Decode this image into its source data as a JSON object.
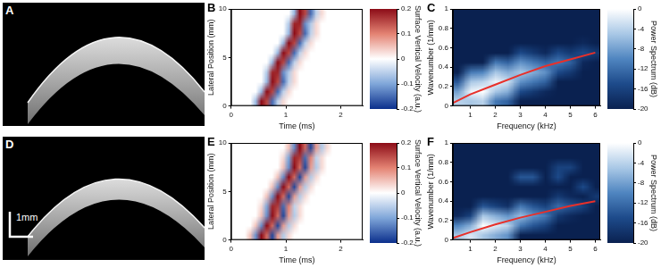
{
  "chart_data": [
    {
      "label": "A",
      "type": "image"
    },
    {
      "label": "B",
      "type": "heatmap",
      "grid": false,
      "x_label": "Time (ms)",
      "y_label": "Lateral Position (mm)",
      "xlim": [
        0,
        2.4
      ],
      "xticks": [
        0,
        1,
        2
      ],
      "ylim": [
        0,
        10
      ],
      "yticks": [
        0,
        5,
        10
      ],
      "x": [
        0.05,
        0.15,
        0.25,
        0.35,
        0.45,
        0.55,
        0.65,
        0.75,
        0.85,
        0.95,
        1.05,
        1.15,
        1.25,
        1.35,
        1.45,
        1.55,
        1.65,
        1.75,
        1.85,
        1.95,
        2.05,
        2.15,
        2.25,
        2.35
      ],
      "y": [
        0.5,
        1.5,
        2.5,
        3.5,
        4.5,
        5.5,
        6.5,
        7.5,
        8.5,
        9.5
      ],
      "cells": [
        [
          0,
          0,
          0,
          0,
          -0.08,
          0.2,
          0.15,
          -0.15,
          -0.05,
          0.03,
          0,
          0,
          0,
          0,
          0,
          0,
          0,
          0,
          0,
          0,
          0,
          0,
          0,
          0
        ],
        [
          0,
          0,
          0,
          0,
          0,
          -0.08,
          0.2,
          0.15,
          -0.15,
          -0.05,
          0.03,
          0,
          0,
          0,
          0,
          0,
          0,
          0,
          0,
          0,
          0,
          0,
          0,
          0
        ],
        [
          0,
          0,
          0,
          0,
          0,
          0,
          -0.08,
          0.2,
          0.15,
          -0.15,
          -0.05,
          0.03,
          0,
          0,
          0,
          0,
          0,
          0,
          0,
          0,
          0,
          0,
          0,
          0
        ],
        [
          0,
          0,
          0,
          0,
          0,
          0,
          -0.06,
          0.18,
          0.18,
          -0.12,
          -0.06,
          0.03,
          0,
          0,
          0,
          0,
          0,
          0,
          0,
          0,
          0,
          0,
          0,
          0
        ],
        [
          0,
          0,
          0,
          0,
          0,
          0,
          0,
          -0.08,
          0.2,
          0.15,
          -0.15,
          -0.05,
          0.03,
          0,
          0,
          0,
          0,
          0,
          0,
          0,
          0,
          0,
          0,
          0
        ],
        [
          0,
          0,
          0,
          0,
          0,
          0,
          0,
          0,
          -0.08,
          0.2,
          0.15,
          -0.15,
          -0.05,
          0.03,
          0,
          0,
          0,
          0,
          0,
          0,
          0,
          0,
          0,
          0
        ],
        [
          0,
          0,
          0,
          0,
          0,
          0,
          0,
          0,
          0,
          -0.08,
          0.2,
          0.15,
          -0.15,
          -0.05,
          0.03,
          0,
          0,
          0,
          0,
          0,
          0,
          0,
          0,
          0
        ],
        [
          0,
          0,
          0,
          0,
          0,
          0,
          0,
          0,
          0,
          0,
          -0.08,
          0.2,
          0.15,
          -0.15,
          -0.05,
          0.03,
          0,
          0,
          0,
          0,
          0,
          0,
          0,
          0
        ],
        [
          0,
          0,
          0,
          0,
          0,
          0,
          0,
          0,
          0,
          0,
          -0.06,
          0.18,
          0.18,
          -0.12,
          -0.06,
          0.03,
          0,
          0,
          0,
          0,
          0,
          0,
          0,
          0
        ],
        [
          0,
          0,
          0,
          0,
          0,
          0,
          0,
          0,
          0,
          0,
          0,
          -0.08,
          0.2,
          0.15,
          -0.15,
          -0.05,
          0.03,
          0,
          0,
          0,
          0,
          0,
          0,
          0
        ]
      ],
      "colorbar": {
        "label": "Surface Vertical Velocity (a.u.)",
        "range": [
          -0.2,
          0.2
        ],
        "ticks": [
          -0.2,
          -0.1,
          0,
          0.1,
          0.2
        ],
        "colors": [
          "#0b2f8c",
          "#7fa6d9",
          "#ffffff",
          "#e48373",
          "#8c0c17"
        ]
      }
    },
    {
      "label": "C",
      "type": "heatmap",
      "grid": false,
      "x_label": "Frequency (kHz)",
      "y_label": "Wavenumber (1/mm)",
      "xlim": [
        0.3,
        6.2
      ],
      "xticks": [
        1,
        2,
        3,
        4,
        5,
        6
      ],
      "ylim": [
        0,
        1
      ],
      "yticks": [
        0,
        0.2,
        0.4,
        0.6,
        0.8,
        1
      ],
      "x": [
        0.5,
        1,
        1.5,
        2,
        2.5,
        3,
        3.5,
        4,
        4.5,
        5,
        5.5,
        6
      ],
      "y": [
        0.05,
        0.15,
        0.25,
        0.35,
        0.45,
        0.55,
        0.65,
        0.75,
        0.85,
        0.95
      ],
      "cells": [
        [
          -4,
          -5,
          -4,
          -11,
          -13,
          -20,
          -20,
          -20,
          -20,
          -20,
          -20,
          -20
        ],
        [
          -8,
          -1,
          0,
          -5,
          -7,
          -15,
          -17,
          -19,
          -20,
          -20,
          -20,
          -20
        ],
        [
          -14,
          -5,
          -4,
          -1,
          -3,
          -9,
          -11,
          -13,
          -20,
          -20,
          -20,
          -20
        ],
        [
          -20,
          -11,
          -10,
          -5,
          -7,
          -5,
          -7,
          -9,
          -15,
          -17,
          -20,
          -20
        ],
        [
          -20,
          -20,
          -20,
          -11,
          -13,
          -9,
          -11,
          -13,
          -11,
          -13,
          -19,
          -20
        ],
        [
          -20,
          -20,
          -20,
          -20,
          -20,
          -15,
          -17,
          -19,
          -15,
          -17,
          -15,
          -17
        ],
        [
          -20,
          -20,
          -20,
          -20,
          -20,
          -20,
          -20,
          -20,
          -20,
          -20,
          -19,
          -20
        ],
        [
          -20,
          -20,
          -20,
          -20,
          -20,
          -20,
          -20,
          -20,
          -20,
          -20,
          -20,
          -20
        ],
        [
          -20,
          -20,
          -20,
          -20,
          -20,
          -20,
          -20,
          -20,
          -20,
          -20,
          -20,
          -20
        ],
        [
          -20,
          -20,
          -20,
          -20,
          -20,
          -20,
          -20,
          -20,
          -20,
          -20,
          -20,
          -20
        ]
      ],
      "line": {
        "color": "#e8302a",
        "x": [
          0.3,
          1,
          2,
          3,
          4,
          5,
          6
        ],
        "values": [
          0.03,
          0.12,
          0.22,
          0.32,
          0.41,
          0.48,
          0.55
        ]
      },
      "colorbar": {
        "label": "Power Spectrum (dB)",
        "range": [
          -20,
          0
        ],
        "ticks": [
          0,
          -4,
          -8,
          -12,
          -16,
          -20
        ],
        "colors": [
          "#0a2150",
          "#1d4a8a",
          "#4f85c0",
          "#a9c8e6",
          "#ffffff"
        ]
      }
    },
    {
      "label": "D",
      "type": "image",
      "scale_bar": "1mm"
    },
    {
      "label": "E",
      "type": "heatmap",
      "grid": false,
      "x_label": "Time (ms)",
      "y_label": "Lateral Position (mm)",
      "xlim": [
        0,
        2.4
      ],
      "xticks": [
        0,
        1,
        2
      ],
      "ylim": [
        0,
        10
      ],
      "yticks": [
        0,
        5,
        10
      ],
      "x": [
        0.05,
        0.15,
        0.25,
        0.35,
        0.45,
        0.55,
        0.65,
        0.75,
        0.85,
        0.95,
        1.05,
        1.15,
        1.25,
        1.35,
        1.45,
        1.55,
        1.65,
        1.75,
        1.85,
        1.95,
        2.05,
        2.15,
        2.25,
        2.35
      ],
      "y": [
        0.5,
        1.5,
        2.5,
        3.5,
        4.5,
        5.5,
        6.5,
        7.5,
        8.5,
        9.5
      ],
      "cells": [
        [
          0,
          0,
          0,
          0.05,
          -0.12,
          0.2,
          0.12,
          -0.18,
          0.08,
          -0.06,
          0.03,
          0,
          0,
          0,
          0,
          0,
          0,
          0,
          0,
          0,
          0,
          0,
          0,
          0
        ],
        [
          0,
          0,
          0,
          0,
          0.05,
          -0.12,
          0.2,
          0.12,
          -0.18,
          0.08,
          -0.06,
          0.03,
          0,
          0,
          0,
          0,
          0,
          0,
          0,
          0,
          0,
          0,
          0,
          0
        ],
        [
          0,
          0,
          0,
          0,
          0,
          0.05,
          -0.12,
          0.2,
          0.12,
          -0.18,
          0.08,
          -0.06,
          0.03,
          0,
          0,
          0,
          0,
          0,
          0,
          0,
          0,
          0,
          0,
          0
        ],
        [
          0,
          0,
          0,
          0,
          0,
          0.03,
          -0.1,
          0.18,
          0.16,
          -0.15,
          0.1,
          -0.05,
          0.03,
          0,
          0,
          0,
          0,
          0,
          0,
          0,
          0,
          0,
          0,
          0
        ],
        [
          0,
          0,
          0,
          0,
          0,
          0,
          0.05,
          -0.12,
          0.2,
          0.12,
          -0.18,
          0.08,
          -0.06,
          0.03,
          0,
          0,
          0,
          0,
          0,
          0,
          0,
          0,
          0,
          0
        ],
        [
          0,
          0,
          0,
          0,
          0,
          0,
          0,
          0.05,
          -0.12,
          0.2,
          0.12,
          -0.18,
          0.08,
          -0.06,
          0.03,
          0,
          0,
          0,
          0,
          0,
          0,
          0,
          0,
          0
        ],
        [
          0,
          0,
          0,
          0,
          0,
          0,
          0,
          0,
          0.05,
          -0.12,
          0.2,
          0.12,
          -0.18,
          0.08,
          -0.06,
          0.03,
          0,
          0,
          0,
          0,
          0,
          0,
          0,
          0
        ],
        [
          0,
          0,
          0,
          0,
          0,
          0,
          0,
          0,
          0,
          0.05,
          -0.12,
          0.2,
          0.12,
          -0.18,
          0.08,
          -0.06,
          0.03,
          0,
          0,
          0,
          0,
          0,
          0,
          0
        ],
        [
          0,
          0,
          0,
          0,
          0,
          0,
          0,
          0,
          0,
          0.03,
          -0.1,
          0.18,
          0.16,
          -0.15,
          0.1,
          -0.05,
          0.03,
          0,
          0,
          0,
          0,
          0,
          0,
          0
        ],
        [
          0,
          0,
          0,
          0,
          0,
          0,
          0,
          0,
          0,
          0,
          0.05,
          -0.12,
          0.2,
          0.12,
          -0.18,
          0.08,
          -0.06,
          0.03,
          0,
          0,
          0,
          0,
          0,
          0
        ]
      ],
      "colorbar": {
        "label": "Surface Vertical Velocity (a.u.)",
        "range": [
          -0.2,
          0.2
        ],
        "ticks": [
          -0.2,
          -0.1,
          0,
          0.1,
          0.2
        ],
        "colors": [
          "#0b2f8c",
          "#7fa6d9",
          "#ffffff",
          "#e48373",
          "#8c0c17"
        ]
      }
    },
    {
      "label": "F",
      "type": "heatmap",
      "grid": false,
      "x_label": "Frequency (kHz)",
      "y_label": "Wavenumber (1/mm)",
      "xlim": [
        0.3,
        6.2
      ],
      "xticks": [
        1,
        2,
        3,
        4,
        5,
        6
      ],
      "ylim": [
        0,
        1
      ],
      "yticks": [
        0,
        0.2,
        0.4,
        0.6,
        0.8,
        1
      ],
      "x": [
        0.5,
        1,
        1.5,
        2,
        2.5,
        3,
        3.5,
        4,
        4.5,
        5,
        5.5,
        6
      ],
      "y": [
        0.05,
        0.15,
        0.25,
        0.35,
        0.45,
        0.55,
        0.65,
        0.75,
        0.85,
        0.95
      ],
      "cells": [
        [
          -5,
          -2,
          -5,
          -7,
          -9,
          -20,
          -20,
          -20,
          -20,
          -20,
          -20,
          -20
        ],
        [
          -10,
          -7,
          0,
          -2,
          -4,
          -11,
          -14,
          -16,
          -20,
          -20,
          -20,
          -20
        ],
        [
          -19,
          -16,
          -5,
          -7,
          -9,
          -6,
          -9,
          -11,
          -17,
          -19,
          -20,
          -20
        ],
        [
          -20,
          -20,
          -14,
          -16,
          -18,
          -11,
          -14,
          -16,
          -12,
          -14,
          -16,
          -20
        ],
        [
          -20,
          -20,
          -20,
          -20,
          -20,
          -20,
          -20,
          -20,
          -17,
          -19,
          -20,
          -17
        ],
        [
          -20,
          -20,
          -20,
          -20,
          -20,
          -20,
          -20,
          -20,
          -20,
          -20,
          -15,
          -20
        ],
        [
          -20,
          -20,
          -20,
          -20,
          -20,
          -14,
          -14,
          -20,
          -15,
          -20,
          -20,
          -20
        ],
        [
          -20,
          -20,
          -20,
          -20,
          -20,
          -20,
          -20,
          -20,
          -16,
          -16,
          -20,
          -20
        ],
        [
          -20,
          -20,
          -20,
          -20,
          -20,
          -20,
          -20,
          -20,
          -20,
          -20,
          -20,
          -20
        ],
        [
          -20,
          -20,
          -20,
          -20,
          -20,
          -20,
          -20,
          -20,
          -20,
          -20,
          -20,
          -20
        ]
      ],
      "line": {
        "color": "#e8302a",
        "x": [
          0.3,
          1,
          2,
          3,
          4,
          5,
          6
        ],
        "values": [
          0.02,
          0.08,
          0.16,
          0.23,
          0.29,
          0.35,
          0.4
        ]
      },
      "colorbar": {
        "label": "Power Spectrum (dB)",
        "range": [
          -20,
          0
        ],
        "ticks": [
          0,
          -4,
          -8,
          -12,
          -16,
          -20
        ],
        "colors": [
          "#0a2150",
          "#1d4a8a",
          "#4f85c0",
          "#a9c8e6",
          "#ffffff"
        ]
      }
    }
  ]
}
